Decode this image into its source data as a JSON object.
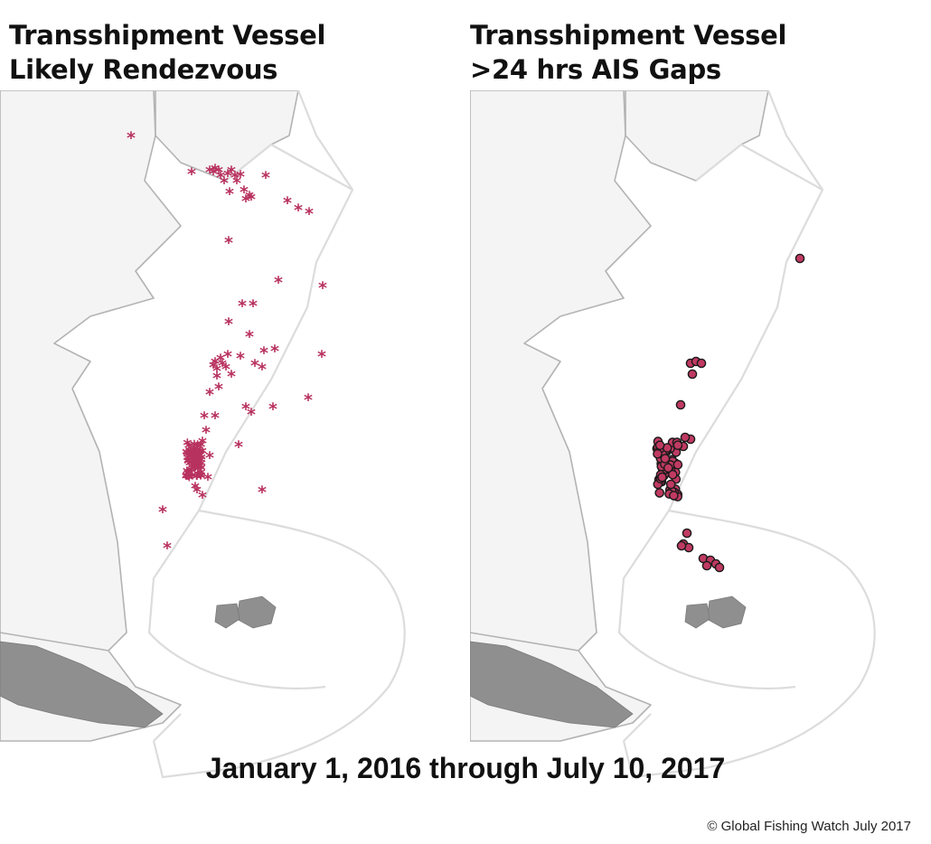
{
  "panels": {
    "left": {
      "title_line1": "Transshipment Vessel",
      "title_line2": "Likely Rendezvous",
      "marker": "asterisk",
      "marker_color": "#b8325f"
    },
    "right": {
      "title_line1": "Transshipment Vessel",
      "title_line2": ">24 hrs AIS Gaps",
      "marker": "circle",
      "marker_color": "#c03a62",
      "marker_outline": "#1a1a1a"
    }
  },
  "caption": "January 1, 2016 through July 10, 2017",
  "credit": "© Global Fishing Watch  July 2017",
  "colors": {
    "land": "#f4f4f4",
    "coastline": "#b3b3b3",
    "eez_boundary": "#dcdcdc",
    "islands": "#8f8f8f"
  }
}
